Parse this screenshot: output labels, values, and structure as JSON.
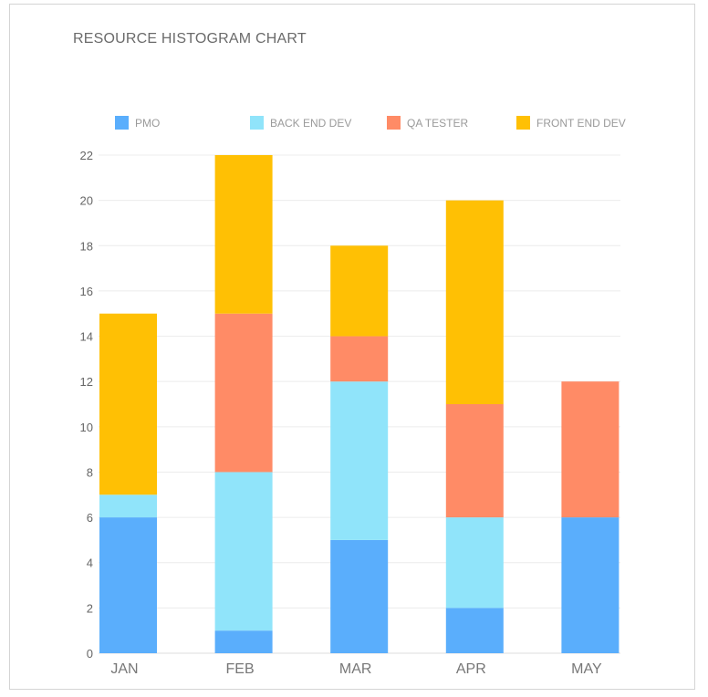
{
  "chart_data": {
    "type": "bar",
    "stacked": true,
    "title": "RESOURCE HISTOGRAM CHART",
    "xlabel": "",
    "ylabel": "",
    "categories": [
      "JAN",
      "FEB",
      "MAR",
      "APR",
      "MAY"
    ],
    "series": [
      {
        "name": "PMO",
        "color": "#5aaefc",
        "values": [
          6,
          1,
          5,
          2,
          6
        ]
      },
      {
        "name": "BACK END DEV",
        "color": "#90e4fa",
        "values": [
          1,
          7,
          7,
          4,
          0
        ]
      },
      {
        "name": "QA TESTER",
        "color": "#ff8b66",
        "values": [
          0,
          7,
          2,
          5,
          6
        ]
      },
      {
        "name": "FRONT END DEV",
        "color": "#ffc004",
        "values": [
          8,
          7,
          4,
          9,
          0
        ]
      }
    ],
    "yticks": [
      "0",
      "2",
      "4",
      "6",
      "8",
      "10",
      "12",
      "14",
      "16",
      "18",
      "20",
      "22"
    ],
    "ylim": [
      0,
      22
    ],
    "grid": true,
    "legend_position": "top"
  }
}
